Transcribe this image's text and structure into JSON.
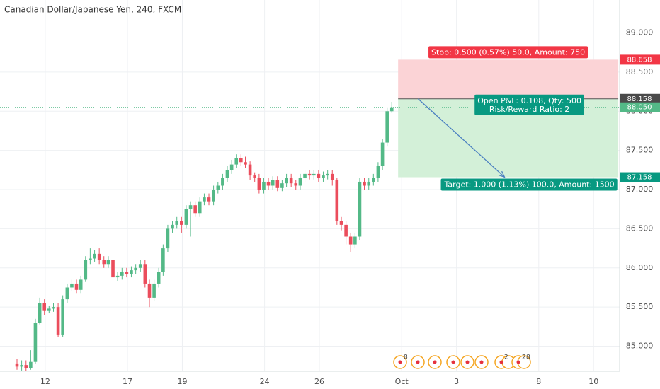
{
  "chart_data": {
    "type": "candlestick",
    "title": "Canadian Dollar/Japanese Yen, 240, FXCM",
    "xlim": [
      -1.65,
      20.95
    ],
    "ylim": [
      84.68,
      89.42
    ],
    "xticks": [
      {
        "value": 0,
        "label": "12"
      },
      {
        "value": 3,
        "label": "17"
      },
      {
        "value": 5,
        "label": "19"
      },
      {
        "value": 8,
        "label": "24"
      },
      {
        "value": 10,
        "label": "26"
      },
      {
        "value": 13,
        "label": "Oct"
      },
      {
        "value": 15,
        "label": "3"
      },
      {
        "value": 18,
        "label": "8"
      },
      {
        "value": 20,
        "label": "10"
      }
    ],
    "yticks": [
      {
        "value": 85,
        "label": "85.000"
      },
      {
        "value": 85.5,
        "label": "85.500"
      },
      {
        "value": 86,
        "label": "86.000"
      },
      {
        "value": 86.5,
        "label": "86.500"
      },
      {
        "value": 87,
        "label": "87.000"
      },
      {
        "value": 87.5,
        "label": "87.500"
      },
      {
        "value": 88,
        "label": "88.000"
      },
      {
        "value": 88.5,
        "label": "88.500"
      },
      {
        "value": 89,
        "label": "89.000"
      }
    ],
    "grid": true,
    "up_color": "#53b987",
    "down_color": "#eb4d5c",
    "x": [
      -1.03,
      -0.86,
      -0.7,
      -0.53,
      -0.36,
      -0.2,
      -0.03,
      0.14,
      0.3,
      0.47,
      0.64,
      0.8,
      0.97,
      1.14,
      1.3,
      1.47,
      1.64,
      1.8,
      1.97,
      2.14,
      2.3,
      2.47,
      2.64,
      2.8,
      2.97,
      3.14,
      3.3,
      3.47,
      3.64,
      3.8,
      3.97,
      4.14,
      4.3,
      4.47,
      4.64,
      4.8,
      4.97,
      5.14,
      5.3,
      5.47,
      5.64,
      5.8,
      5.97,
      6.14,
      6.3,
      6.47,
      6.64,
      6.8,
      6.97,
      7.14,
      7.3,
      7.47,
      7.64,
      7.8,
      7.97,
      8.14,
      8.3,
      8.47,
      8.64,
      8.8,
      8.97,
      9.14,
      9.3,
      9.47,
      9.64,
      9.8,
      9.97,
      10.14,
      10.3,
      10.47,
      10.64,
      10.8,
      10.97,
      11.14,
      11.3,
      11.47,
      11.64,
      11.8,
      11.97,
      12.14,
      12.3,
      12.47,
      12.64
    ],
    "open": [
      84.78,
      84.74,
      84.76,
      84.72,
      84.8,
      85.3,
      85.55,
      85.45,
      85.48,
      85.5,
      85.15,
      85.6,
      85.75,
      85.8,
      85.72,
      85.85,
      86.1,
      86.12,
      86.18,
      86.1,
      86.05,
      86.1,
      85.88,
      85.9,
      85.95,
      85.92,
      85.97,
      86.0,
      86.05,
      85.8,
      85.62,
      85.8,
      85.95,
      86.25,
      86.5,
      86.55,
      86.6,
      86.55,
      86.75,
      86.8,
      86.7,
      86.85,
      86.9,
      86.85,
      87.0,
      87.05,
      87.15,
      87.25,
      87.32,
      87.4,
      87.35,
      87.32,
      87.18,
      87.15,
      87.0,
      87.1,
      87.05,
      87.12,
      87.02,
      87.08,
      87.15,
      87.08,
      87.05,
      87.15,
      87.2,
      87.18,
      87.2,
      87.15,
      87.18,
      87.2,
      87.12,
      86.6,
      86.55,
      86.4,
      86.3,
      86.4,
      87.1,
      87.05,
      87.1,
      87.15,
      87.3,
      87.6,
      88.0
    ],
    "high": [
      84.84,
      84.82,
      84.82,
      84.95,
      85.35,
      85.62,
      85.6,
      85.52,
      85.55,
      85.55,
      85.65,
      85.8,
      85.85,
      85.85,
      85.9,
      86.15,
      86.25,
      86.23,
      86.25,
      86.15,
      86.15,
      86.13,
      85.95,
      86.0,
      86.0,
      86.02,
      86.05,
      86.1,
      86.1,
      85.85,
      85.85,
      86.0,
      86.3,
      86.55,
      86.6,
      86.65,
      86.65,
      86.8,
      86.85,
      86.85,
      86.9,
      86.95,
      86.95,
      87.05,
      87.1,
      87.2,
      87.3,
      87.38,
      87.45,
      87.45,
      87.42,
      87.36,
      87.22,
      87.2,
      87.15,
      87.15,
      87.17,
      87.17,
      87.12,
      87.2,
      87.2,
      87.12,
      87.2,
      87.25,
      87.25,
      87.25,
      87.25,
      87.23,
      87.25,
      87.25,
      87.15,
      86.65,
      86.6,
      86.45,
      86.45,
      87.15,
      87.15,
      87.15,
      87.2,
      87.35,
      87.65,
      88.05,
      88.12
    ],
    "low": [
      84.7,
      84.69,
      84.68,
      84.7,
      84.78,
      85.28,
      85.4,
      85.42,
      85.44,
      85.12,
      85.12,
      85.55,
      85.7,
      85.68,
      85.68,
      85.82,
      86.05,
      86.08,
      86.05,
      86.0,
      86.0,
      85.83,
      85.83,
      85.85,
      85.88,
      85.88,
      85.92,
      85.95,
      85.75,
      85.5,
      85.58,
      85.75,
      85.9,
      86.2,
      86.45,
      86.5,
      86.45,
      86.5,
      86.4,
      86.65,
      86.65,
      86.8,
      86.8,
      86.8,
      86.95,
      87.0,
      87.1,
      87.2,
      87.28,
      87.3,
      87.28,
      87.12,
      87.1,
      86.95,
      86.95,
      87.0,
      87.0,
      86.98,
      86.98,
      87.03,
      87.03,
      87.0,
      87.0,
      87.1,
      87.13,
      87.13,
      87.1,
      87.1,
      87.13,
      87.05,
      86.55,
      86.48,
      86.3,
      86.2,
      86.25,
      86.35,
      87.0,
      87.0,
      87.05,
      87.1,
      87.25,
      87.55,
      87.98
    ],
    "close": [
      84.74,
      84.76,
      84.72,
      84.8,
      85.3,
      85.55,
      85.45,
      85.48,
      85.5,
      85.15,
      85.6,
      85.75,
      85.8,
      85.72,
      85.85,
      86.1,
      86.12,
      86.18,
      86.1,
      86.05,
      86.1,
      85.88,
      85.9,
      85.95,
      85.92,
      85.97,
      86.0,
      86.05,
      85.8,
      85.62,
      85.8,
      85.95,
      86.25,
      86.5,
      86.55,
      86.6,
      86.55,
      86.75,
      86.8,
      86.7,
      86.85,
      86.9,
      86.85,
      87.0,
      87.05,
      87.15,
      87.25,
      87.32,
      87.4,
      87.35,
      87.32,
      87.18,
      87.15,
      87.0,
      87.1,
      87.05,
      87.12,
      87.02,
      87.08,
      87.15,
      87.08,
      87.05,
      87.15,
      87.2,
      87.18,
      87.2,
      87.15,
      87.18,
      87.2,
      87.12,
      86.6,
      86.55,
      86.4,
      86.3,
      86.4,
      87.1,
      87.05,
      87.1,
      87.15,
      87.3,
      87.6,
      88.0,
      88.05
    ],
    "last_price": {
      "value": 88.05,
      "label": "88.050"
    },
    "position": {
      "x_start": 12.87,
      "x_end": 20.9,
      "stop": 88.658,
      "entry": 88.158,
      "target": 87.158,
      "stop_label": "Stop: 0.500 (0.57%) 50.0, Amount: 750",
      "pnl_label": "Open P&L: 0.108, Qty: 500",
      "ratio_label": "Risk/Reward Ratio: 2",
      "target_label": "Target: 1.000 (1.13%) 100.0, Amount: 1500"
    },
    "arrow": {
      "x": [
        13.6,
        16.75
      ],
      "y": [
        88.158,
        87.16
      ]
    },
    "event_badges": [
      "8",
      "2",
      "2",
      "8"
    ]
  }
}
